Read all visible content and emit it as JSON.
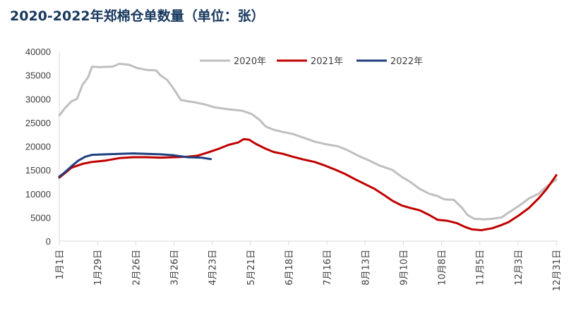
{
  "chart_data": {
    "type": "line",
    "title": "2020-2022年郑棉仓单数量（单位：张）",
    "xlabel": "",
    "ylabel": "",
    "ylim": [
      0,
      40000
    ],
    "yticks": [
      0,
      5000,
      10000,
      15000,
      20000,
      25000,
      30000,
      35000,
      40000
    ],
    "xlim": [
      1,
      366
    ],
    "xticks": [
      {
        "label": "1月1日",
        "day": 1
      },
      {
        "label": "1月29日",
        "day": 29
      },
      {
        "label": "2月26日",
        "day": 57
      },
      {
        "label": "3月26日",
        "day": 85
      },
      {
        "label": "4月23日",
        "day": 113
      },
      {
        "label": "5月21日",
        "day": 141
      },
      {
        "label": "6月18日",
        "day": 169
      },
      {
        "label": "7月16日",
        "day": 197
      },
      {
        "label": "8月13日",
        "day": 225
      },
      {
        "label": "9月10日",
        "day": 253
      },
      {
        "label": "10月8日",
        "day": 281
      },
      {
        "label": "11月5日",
        "day": 309
      },
      {
        "label": "12月3日",
        "day": 337
      },
      {
        "label": "12月31日",
        "day": 365
      }
    ],
    "grid": false,
    "legend_position": "top-right",
    "series": [
      {
        "name": "2020年",
        "color": "#bfbfbf",
        "points": [
          [
            1,
            26500
          ],
          [
            5,
            28000
          ],
          [
            10,
            29500
          ],
          [
            14,
            30000
          ],
          [
            18,
            33000
          ],
          [
            22,
            34500
          ],
          [
            25,
            36800
          ],
          [
            30,
            36700
          ],
          [
            40,
            36800
          ],
          [
            45,
            37400
          ],
          [
            52,
            37200
          ],
          [
            58,
            36500
          ],
          [
            65,
            36100
          ],
          [
            72,
            36000
          ],
          [
            75,
            35000
          ],
          [
            80,
            34000
          ],
          [
            85,
            32000
          ],
          [
            90,
            29800
          ],
          [
            95,
            29500
          ],
          [
            100,
            29300
          ],
          [
            108,
            28800
          ],
          [
            115,
            28200
          ],
          [
            125,
            27800
          ],
          [
            135,
            27500
          ],
          [
            142,
            26800
          ],
          [
            148,
            25500
          ],
          [
            152,
            24200
          ],
          [
            158,
            23500
          ],
          [
            165,
            23000
          ],
          [
            172,
            22600
          ],
          [
            180,
            21800
          ],
          [
            188,
            21000
          ],
          [
            195,
            20500
          ],
          [
            205,
            20000
          ],
          [
            212,
            19200
          ],
          [
            220,
            18000
          ],
          [
            228,
            17000
          ],
          [
            235,
            16000
          ],
          [
            245,
            15000
          ],
          [
            252,
            13500
          ],
          [
            258,
            12500
          ],
          [
            265,
            11000
          ],
          [
            272,
            10000
          ],
          [
            278,
            9500
          ],
          [
            283,
            8800
          ],
          [
            290,
            8700
          ],
          [
            296,
            7000
          ],
          [
            300,
            5500
          ],
          [
            305,
            4700
          ],
          [
            312,
            4600
          ],
          [
            318,
            4700
          ],
          [
            325,
            5000
          ],
          [
            330,
            6000
          ],
          [
            338,
            7500
          ],
          [
            345,
            9000
          ],
          [
            352,
            10000
          ],
          [
            358,
            11500
          ],
          [
            365,
            13000
          ]
        ]
      },
      {
        "name": "2021年",
        "color": "#c00000",
        "points": [
          [
            1,
            13400
          ],
          [
            5,
            14300
          ],
          [
            10,
            15500
          ],
          [
            18,
            16300
          ],
          [
            25,
            16700
          ],
          [
            35,
            17000
          ],
          [
            45,
            17500
          ],
          [
            55,
            17700
          ],
          [
            65,
            17700
          ],
          [
            75,
            17600
          ],
          [
            85,
            17700
          ],
          [
            95,
            17800
          ],
          [
            102,
            18000
          ],
          [
            110,
            18700
          ],
          [
            118,
            19500
          ],
          [
            125,
            20300
          ],
          [
            132,
            20800
          ],
          [
            136,
            21500
          ],
          [
            140,
            21400
          ],
          [
            145,
            20500
          ],
          [
            152,
            19500
          ],
          [
            158,
            18800
          ],
          [
            165,
            18400
          ],
          [
            172,
            17800
          ],
          [
            180,
            17200
          ],
          [
            188,
            16700
          ],
          [
            195,
            16000
          ],
          [
            202,
            15200
          ],
          [
            210,
            14200
          ],
          [
            218,
            13000
          ],
          [
            225,
            12000
          ],
          [
            232,
            11000
          ],
          [
            240,
            9500
          ],
          [
            245,
            8500
          ],
          [
            252,
            7500
          ],
          [
            258,
            7000
          ],
          [
            265,
            6500
          ],
          [
            272,
            5500
          ],
          [
            278,
            4500
          ],
          [
            285,
            4300
          ],
          [
            292,
            3800
          ],
          [
            298,
            3000
          ],
          [
            303,
            2500
          ],
          [
            310,
            2300
          ],
          [
            318,
            2700
          ],
          [
            324,
            3300
          ],
          [
            330,
            4000
          ],
          [
            338,
            5500
          ],
          [
            345,
            7000
          ],
          [
            352,
            9000
          ],
          [
            358,
            11000
          ],
          [
            365,
            13900
          ]
        ]
      },
      {
        "name": "2022年",
        "color": "#1f3f7f",
        "points": [
          [
            1,
            13600
          ],
          [
            5,
            14500
          ],
          [
            10,
            15800
          ],
          [
            15,
            17000
          ],
          [
            20,
            17800
          ],
          [
            25,
            18200
          ],
          [
            35,
            18300
          ],
          [
            45,
            18400
          ],
          [
            55,
            18500
          ],
          [
            65,
            18400
          ],
          [
            75,
            18300
          ],
          [
            85,
            18100
          ],
          [
            95,
            17700
          ],
          [
            105,
            17600
          ],
          [
            112,
            17300
          ]
        ]
      }
    ]
  }
}
